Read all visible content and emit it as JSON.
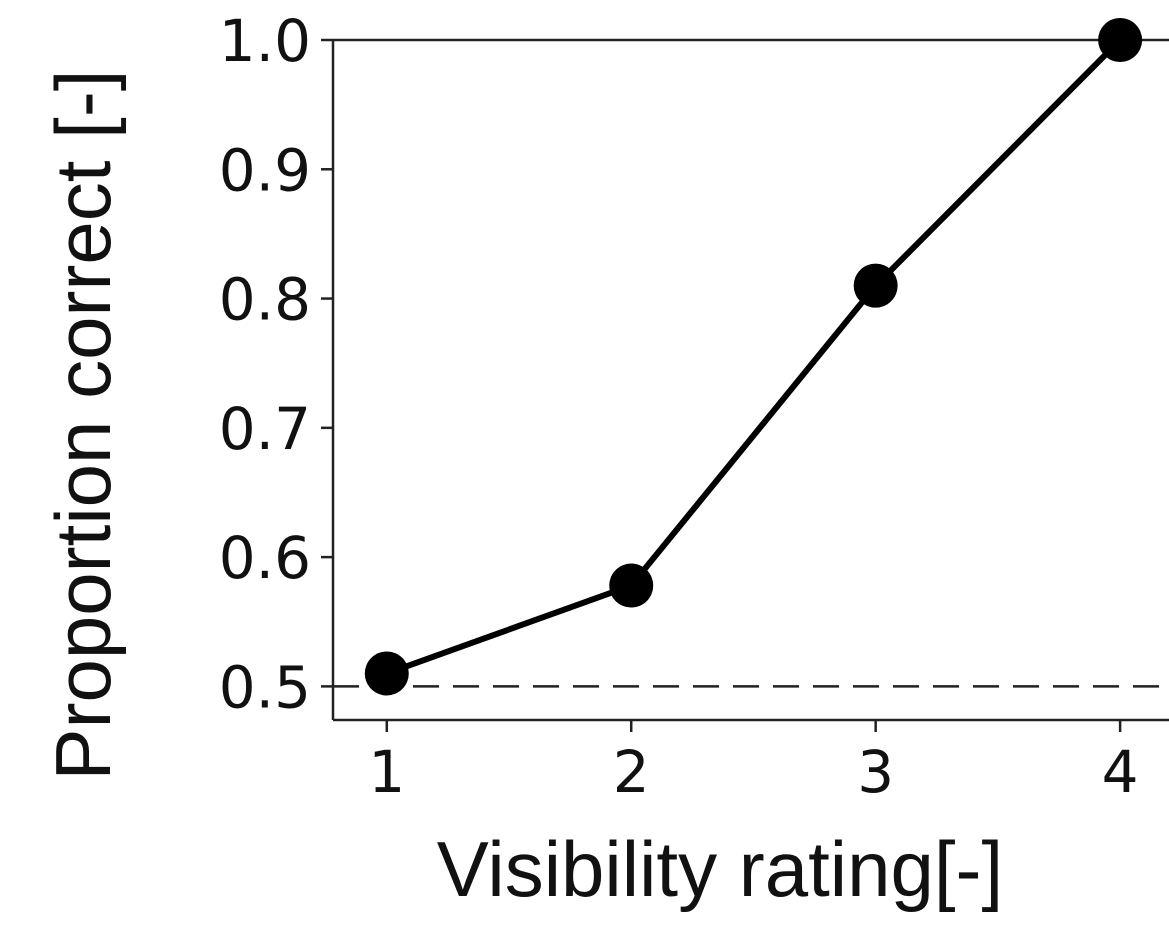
{
  "chart_data": {
    "type": "line",
    "title": "",
    "xlabel": "Visibility rating[-]",
    "ylabel": "Proportion correct [-]",
    "x": [
      1,
      2,
      3,
      4
    ],
    "x_tick_labels": [
      "1",
      "2",
      "3",
      "4"
    ],
    "y_tick_labels": [
      "0.5",
      "0.6",
      "0.7",
      "0.8",
      "0.9",
      "1.0"
    ],
    "y_ticks": [
      0.5,
      0.6,
      0.7,
      0.8,
      0.9,
      1.0
    ],
    "xlim": [
      0.78,
      4.2
    ],
    "ylim": [
      0.474,
      1.0
    ],
    "series": [
      {
        "values": [
          0.51,
          0.578,
          0.81,
          1.0
        ]
      }
    ],
    "reference_line": {
      "y": 0.5,
      "style": "dashed"
    },
    "grid": false,
    "legend": "none",
    "colors": {
      "line": "#000000",
      "marker": "#000000",
      "axis": "#222222"
    }
  }
}
